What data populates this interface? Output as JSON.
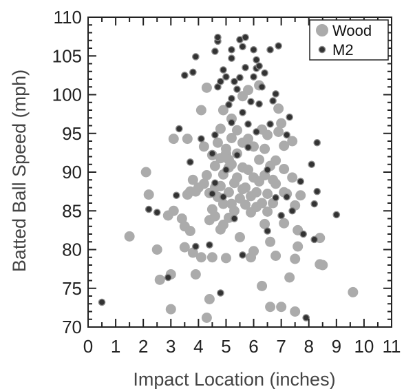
{
  "chart_data": {
    "type": "scatter",
    "xlabel": "Impact Location (inches)",
    "ylabel": "Batted Ball Speed (mph)",
    "xlim": [
      0,
      11
    ],
    "ylim": [
      70,
      110
    ],
    "x_ticks": [
      "0",
      "1",
      "2",
      "3",
      "4",
      "5",
      "6",
      "7",
      "8",
      "9",
      "10",
      "11"
    ],
    "y_ticks": [
      "70",
      "75",
      "80",
      "85",
      "90",
      "95",
      "100",
      "105",
      "110"
    ],
    "legend": {
      "position": "top-right"
    },
    "grid": false,
    "series": [
      {
        "name": "Wood",
        "color": "#aaaaaa",
        "marker": "large-circle",
        "points": [
          [
            1.5,
            81.7
          ],
          [
            2.1,
            90.0
          ],
          [
            2.2,
            87.1
          ],
          [
            2.5,
            80.0
          ],
          [
            2.6,
            76.1
          ],
          [
            2.9,
            84.4
          ],
          [
            3.0,
            72.3
          ],
          [
            3.0,
            76.8
          ],
          [
            3.1,
            85.0
          ],
          [
            3.1,
            94.3
          ],
          [
            3.4,
            84.0
          ],
          [
            3.5,
            80.3
          ],
          [
            3.5,
            83.0
          ],
          [
            3.6,
            94.3
          ],
          [
            3.6,
            87.1
          ],
          [
            3.7,
            82.4
          ],
          [
            3.8,
            89.0
          ],
          [
            3.8,
            79.6
          ],
          [
            3.9,
            76.8
          ],
          [
            3.9,
            87.5
          ],
          [
            4.0,
            88.0
          ],
          [
            4.1,
            98.0
          ],
          [
            4.1,
            79.0
          ],
          [
            4.2,
            93.3
          ],
          [
            4.3,
            100.9
          ],
          [
            4.3,
            89.6
          ],
          [
            4.3,
            71.2
          ],
          [
            4.4,
            83.8
          ],
          [
            4.4,
            87.3
          ],
          [
            4.4,
            73.6
          ],
          [
            4.5,
            92.2
          ],
          [
            4.5,
            85.2
          ],
          [
            4.5,
            79.0
          ],
          [
            4.6,
            90.8
          ],
          [
            4.6,
            88.0
          ],
          [
            4.6,
            84.3
          ],
          [
            4.7,
            93.8
          ],
          [
            4.7,
            86.8
          ],
          [
            4.8,
            82.6
          ],
          [
            4.8,
            91.8
          ],
          [
            4.8,
            95.6
          ],
          [
            4.9,
            98.0
          ],
          [
            4.9,
            89.7
          ],
          [
            4.9,
            85.9
          ],
          [
            5.0,
            78.9
          ],
          [
            5.0,
            93.0
          ],
          [
            5.0,
            92.4
          ],
          [
            5.1,
            90.6
          ],
          [
            5.1,
            87.4
          ],
          [
            5.1,
            84.1
          ],
          [
            5.2,
            96.9
          ],
          [
            5.2,
            94.4
          ],
          [
            5.2,
            91.0
          ],
          [
            5.3,
            88.6
          ],
          [
            5.3,
            85.0
          ],
          [
            5.4,
            92.4
          ],
          [
            5.4,
            89.3
          ],
          [
            5.4,
            95.4
          ],
          [
            5.5,
            86.6
          ],
          [
            5.5,
            81.6
          ],
          [
            5.6,
            99.8
          ],
          [
            5.6,
            93.8
          ],
          [
            5.6,
            90.6
          ],
          [
            5.7,
            88.0
          ],
          [
            5.7,
            85.8
          ],
          [
            5.8,
            100.6
          ],
          [
            5.8,
            94.3
          ],
          [
            5.8,
            90.3
          ],
          [
            5.9,
            86.9
          ],
          [
            5.9,
            84.8
          ],
          [
            5.9,
            79.0
          ],
          [
            6.0,
            93.3
          ],
          [
            6.0,
            89.3
          ],
          [
            6.1,
            87.4
          ],
          [
            6.1,
            85.5
          ],
          [
            6.2,
            91.6
          ],
          [
            6.2,
            88.8
          ],
          [
            6.2,
            101.2
          ],
          [
            6.3,
            95.5
          ],
          [
            6.3,
            86.0
          ],
          [
            6.3,
            75.3
          ],
          [
            6.4,
            93.0
          ],
          [
            6.4,
            89.6
          ],
          [
            6.4,
            83.3
          ],
          [
            6.5,
            94.8
          ],
          [
            6.5,
            87.2
          ],
          [
            6.5,
            84.9
          ],
          [
            6.6,
            90.8
          ],
          [
            6.6,
            81.0
          ],
          [
            6.7,
            89.0
          ],
          [
            6.7,
            86.0
          ],
          [
            6.8,
            91.5
          ],
          [
            6.8,
            79.2
          ],
          [
            6.9,
            95.2
          ],
          [
            6.9,
            98.2
          ],
          [
            7.0,
            96.3
          ],
          [
            7.0,
            72.6
          ],
          [
            7.1,
            93.4
          ],
          [
            7.1,
            90.4
          ],
          [
            7.1,
            83.4
          ],
          [
            7.2,
            87.2
          ],
          [
            7.3,
            76.4
          ],
          [
            7.4,
            94.0
          ],
          [
            7.4,
            89.3
          ],
          [
            7.5,
            85.7
          ],
          [
            7.5,
            72.0
          ],
          [
            7.5,
            78.8
          ],
          [
            7.6,
            80.4
          ],
          [
            7.6,
            82.5
          ],
          [
            7.7,
            87.0
          ],
          [
            8.4,
            81.5
          ],
          [
            8.4,
            78.1
          ],
          [
            8.5,
            78.0
          ],
          [
            9.6,
            74.5
          ],
          [
            6.6,
            72.6
          ],
          [
            5.1,
            91.6
          ],
          [
            4.9,
            83.2
          ],
          [
            6.0,
            79.8
          ],
          [
            5.2,
            85.9
          ],
          [
            4.2,
            88.5
          ],
          [
            6.8,
            88.5
          ],
          [
            7.1,
            87.4
          ],
          [
            3.7,
            87.5
          ],
          [
            4.8,
            88.2
          ],
          [
            5.6,
            87.8
          ]
        ]
      },
      {
        "name": "M2",
        "color": "#333333",
        "marker": "small-circle",
        "points": [
          [
            0.5,
            73.2
          ],
          [
            2.2,
            85.2
          ],
          [
            2.5,
            84.8
          ],
          [
            2.9,
            76.4
          ],
          [
            3.2,
            87.0
          ],
          [
            3.3,
            95.6
          ],
          [
            3.5,
            102.5
          ],
          [
            3.7,
            91.3
          ],
          [
            3.8,
            102.9
          ],
          [
            3.9,
            80.4
          ],
          [
            3.9,
            104.9
          ],
          [
            4.1,
            94.3
          ],
          [
            4.4,
            80.6
          ],
          [
            4.5,
            87.2
          ],
          [
            4.5,
            92.4
          ],
          [
            4.6,
            88.6
          ],
          [
            4.6,
            94.8
          ],
          [
            4.6,
            105.6
          ],
          [
            4.7,
            101.0
          ],
          [
            4.7,
            106.9
          ],
          [
            4.7,
            107.4
          ],
          [
            4.8,
            74.4
          ],
          [
            4.8,
            101.7
          ],
          [
            4.9,
            103.2
          ],
          [
            4.9,
            86.8
          ],
          [
            5.0,
            90.3
          ],
          [
            5.0,
            102.3
          ],
          [
            5.1,
            98.7
          ],
          [
            5.2,
            99.5
          ],
          [
            5.2,
            96.4
          ],
          [
            5.2,
            104.7
          ],
          [
            5.2,
            105.8
          ],
          [
            5.3,
            101.7
          ],
          [
            5.3,
            84.0
          ],
          [
            5.4,
            92.2
          ],
          [
            5.4,
            100.7
          ],
          [
            5.5,
            102.2
          ],
          [
            5.5,
            107.1
          ],
          [
            5.6,
            79.3
          ],
          [
            5.6,
            97.7
          ],
          [
            5.6,
            106.2
          ],
          [
            5.7,
            107.4
          ],
          [
            5.7,
            103.5
          ],
          [
            5.8,
            93.2
          ],
          [
            5.8,
            96.2
          ],
          [
            5.9,
            99.1
          ],
          [
            6.0,
            102.3
          ],
          [
            6.0,
            105.8
          ],
          [
            6.1,
            104.5
          ],
          [
            6.1,
            103.4
          ],
          [
            6.1,
            95.2
          ],
          [
            6.2,
            103.7
          ],
          [
            6.2,
            98.8
          ],
          [
            6.3,
            101.0
          ],
          [
            6.4,
            102.8
          ],
          [
            6.5,
            82.4
          ],
          [
            6.5,
            90.3
          ],
          [
            6.6,
            96.2
          ],
          [
            6.6,
            105.8
          ],
          [
            6.7,
            99.2
          ],
          [
            6.8,
            86.7
          ],
          [
            6.8,
            100.1
          ],
          [
            6.9,
            106.3
          ],
          [
            7.0,
            84.4
          ],
          [
            7.2,
            86.8
          ],
          [
            7.2,
            94.8
          ],
          [
            7.3,
            97.1
          ],
          [
            7.4,
            85.0
          ],
          [
            7.7,
            88.8
          ],
          [
            7.8,
            82.0
          ],
          [
            7.9,
            71.2
          ],
          [
            8.1,
            91.0
          ],
          [
            8.2,
            81.3
          ],
          [
            8.3,
            87.5
          ],
          [
            8.3,
            93.8
          ],
          [
            8.2,
            85.9
          ],
          [
            9.0,
            84.5
          ]
        ]
      }
    ]
  }
}
